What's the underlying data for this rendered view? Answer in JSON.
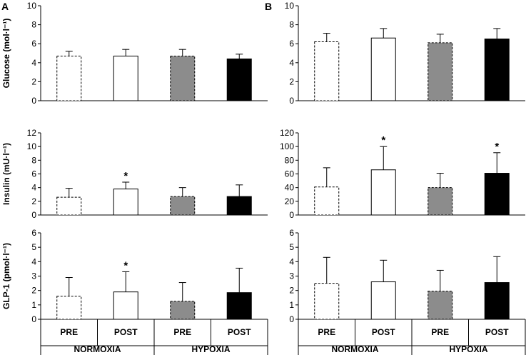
{
  "figure": {
    "panel_labels": [
      "A",
      "B"
    ],
    "categories": [
      "PRE",
      "POST",
      "PRE",
      "POST"
    ],
    "groups": [
      "NORMOXIA",
      "HYPOXIA"
    ],
    "bar_styles": [
      {
        "condition": "Normoxia PRE",
        "fill": "#ffffff",
        "dashed": true
      },
      {
        "condition": "Normoxia POST",
        "fill": "#ffffff",
        "dashed": false
      },
      {
        "condition": "Hypoxia PRE",
        "fill": "#8c8c8c",
        "dashed": true
      },
      {
        "condition": "Hypoxia POST",
        "fill": "#000000",
        "dashed": false
      }
    ]
  },
  "chart_data": [
    {
      "type": "bar",
      "panel": "A",
      "row": "glucose",
      "ylabel": "Glucose (mol·l⁻¹)",
      "ylim": [
        0,
        10
      ],
      "yticks": [
        "0",
        "2",
        "4",
        "6",
        "8",
        "10"
      ],
      "categories": [
        "PRE",
        "POST",
        "PRE",
        "POST"
      ],
      "values": [
        4.7,
        4.7,
        4.7,
        4.4
      ],
      "errors": [
        0.5,
        0.7,
        0.7,
        0.5
      ],
      "significant": [
        false,
        false,
        false,
        false
      ]
    },
    {
      "type": "bar",
      "panel": "B",
      "row": "glucose",
      "ylabel": "",
      "ylim": [
        0,
        10
      ],
      "yticks": [
        "0",
        "2",
        "4",
        "6",
        "8",
        "10"
      ],
      "categories": [
        "PRE",
        "POST",
        "PRE",
        "POST"
      ],
      "values": [
        6.2,
        6.6,
        6.1,
        6.5
      ],
      "errors": [
        0.9,
        1.0,
        0.9,
        1.1
      ],
      "significant": [
        false,
        false,
        false,
        false
      ]
    },
    {
      "type": "bar",
      "panel": "A",
      "row": "insulin",
      "ylabel": "Insulin (mU·l⁻¹)",
      "ylim": [
        0,
        12
      ],
      "yticks": [
        "0",
        "2",
        "4",
        "6",
        "8",
        "10",
        "12"
      ],
      "categories": [
        "PRE",
        "POST",
        "PRE",
        "POST"
      ],
      "values": [
        2.6,
        3.8,
        2.7,
        2.7
      ],
      "errors": [
        1.3,
        1.0,
        1.3,
        1.7
      ],
      "significant": [
        false,
        true,
        false,
        false
      ]
    },
    {
      "type": "bar",
      "panel": "B",
      "row": "insulin",
      "ylabel": "",
      "ylim": [
        0,
        120
      ],
      "yticks": [
        "0",
        "20",
        "40",
        "60",
        "80",
        "100",
        "120"
      ],
      "categories": [
        "PRE",
        "POST",
        "PRE",
        "POST"
      ],
      "values": [
        41,
        66,
        40,
        61
      ],
      "errors": [
        28,
        34,
        21,
        30
      ],
      "significant": [
        false,
        true,
        false,
        true
      ]
    },
    {
      "type": "bar",
      "panel": "A",
      "row": "glp1",
      "ylabel": "GLP-1 (pmol·l⁻¹)",
      "ylim": [
        0,
        6
      ],
      "yticks": [
        "0",
        "1",
        "2",
        "3",
        "4",
        "5",
        "6"
      ],
      "categories": [
        "PRE",
        "POST",
        "PRE",
        "POST"
      ],
      "values": [
        1.6,
        1.9,
        1.25,
        1.85
      ],
      "errors": [
        1.3,
        1.4,
        1.3,
        1.7
      ],
      "significant": [
        false,
        true,
        false,
        false
      ]
    },
    {
      "type": "bar",
      "panel": "B",
      "row": "glp1",
      "ylabel": "",
      "ylim": [
        0,
        6
      ],
      "yticks": [
        "0",
        "1",
        "2",
        "3",
        "4",
        "5",
        "6"
      ],
      "categories": [
        "PRE",
        "POST",
        "PRE",
        "POST"
      ],
      "values": [
        2.5,
        2.6,
        1.95,
        2.55
      ],
      "errors": [
        1.8,
        1.5,
        1.45,
        1.8
      ],
      "significant": [
        false,
        false,
        false,
        false
      ]
    }
  ]
}
